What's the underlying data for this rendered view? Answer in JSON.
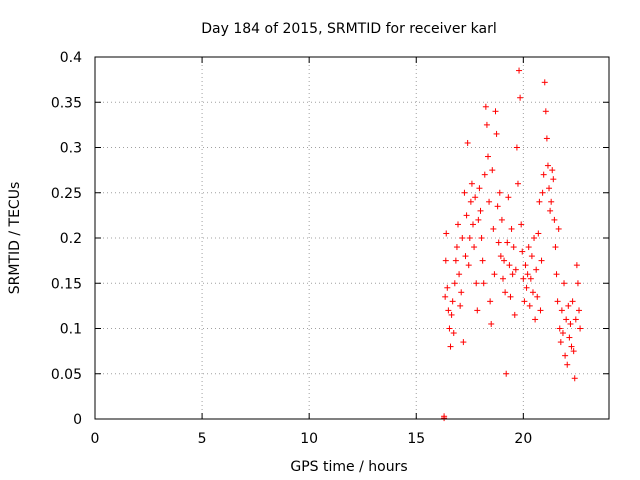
{
  "chart_data": {
    "type": "scatter",
    "title": "Day 184 of 2015, SRMTID for receiver karl",
    "xlabel": "GPS time / hours",
    "ylabel": "SRMTID / TECUs",
    "xlim": [
      0,
      24
    ],
    "ylim": [
      0,
      0.4
    ],
    "xticks": [
      0,
      5,
      10,
      15,
      20
    ],
    "yticks": [
      0,
      0.05,
      0.1,
      0.15,
      0.2,
      0.25,
      0.3,
      0.35,
      0.4
    ],
    "xtick_labels": [
      "0",
      "5",
      "10",
      "15",
      "20"
    ],
    "ytick_labels": [
      "0",
      "0.05",
      "0.1",
      "0.15",
      "0.2",
      "0.25",
      "0.3",
      "0.35",
      "0.4"
    ],
    "grid": true,
    "marker": "+",
    "marker_color": "#ff0000",
    "point_pairs": [
      [
        16.3,
        0.001
      ],
      [
        16.3,
        0.003
      ],
      [
        16.35,
        0.135
      ],
      [
        16.38,
        0.175
      ],
      [
        16.4,
        0.205
      ],
      [
        16.45,
        0.145
      ],
      [
        16.5,
        0.12
      ],
      [
        16.55,
        0.1
      ],
      [
        16.6,
        0.08
      ],
      [
        16.65,
        0.115
      ],
      [
        16.7,
        0.13
      ],
      [
        16.75,
        0.095
      ],
      [
        16.8,
        0.15
      ],
      [
        16.85,
        0.175
      ],
      [
        16.9,
        0.19
      ],
      [
        16.95,
        0.215
      ],
      [
        17.0,
        0.16
      ],
      [
        17.05,
        0.125
      ],
      [
        17.1,
        0.14
      ],
      [
        17.15,
        0.2
      ],
      [
        17.2,
        0.085
      ],
      [
        17.25,
        0.25
      ],
      [
        17.3,
        0.18
      ],
      [
        17.35,
        0.225
      ],
      [
        17.4,
        0.305
      ],
      [
        17.45,
        0.17
      ],
      [
        17.5,
        0.2
      ],
      [
        17.55,
        0.24
      ],
      [
        17.6,
        0.26
      ],
      [
        17.65,
        0.215
      ],
      [
        17.7,
        0.19
      ],
      [
        17.75,
        0.245
      ],
      [
        17.8,
        0.15
      ],
      [
        17.85,
        0.12
      ],
      [
        17.9,
        0.22
      ],
      [
        17.95,
        0.255
      ],
      [
        18.0,
        0.23
      ],
      [
        18.05,
        0.2
      ],
      [
        18.1,
        0.175
      ],
      [
        18.15,
        0.15
      ],
      [
        18.2,
        0.27
      ],
      [
        18.25,
        0.345
      ],
      [
        18.3,
        0.325
      ],
      [
        18.35,
        0.29
      ],
      [
        18.4,
        0.24
      ],
      [
        18.45,
        0.13
      ],
      [
        18.5,
        0.105
      ],
      [
        18.55,
        0.275
      ],
      [
        18.6,
        0.21
      ],
      [
        18.65,
        0.16
      ],
      [
        18.7,
        0.34
      ],
      [
        18.75,
        0.315
      ],
      [
        18.8,
        0.235
      ],
      [
        18.85,
        0.195
      ],
      [
        18.9,
        0.25
      ],
      [
        18.95,
        0.18
      ],
      [
        19.0,
        0.22
      ],
      [
        19.05,
        0.155
      ],
      [
        19.1,
        0.175
      ],
      [
        19.15,
        0.14
      ],
      [
        19.2,
        0.05
      ],
      [
        19.25,
        0.195
      ],
      [
        19.3,
        0.245
      ],
      [
        19.35,
        0.17
      ],
      [
        19.4,
        0.135
      ],
      [
        19.45,
        0.21
      ],
      [
        19.5,
        0.16
      ],
      [
        19.55,
        0.19
      ],
      [
        19.6,
        0.115
      ],
      [
        19.65,
        0.165
      ],
      [
        19.7,
        0.3
      ],
      [
        19.75,
        0.26
      ],
      [
        19.8,
        0.385
      ],
      [
        19.85,
        0.355
      ],
      [
        19.9,
        0.215
      ],
      [
        19.95,
        0.185
      ],
      [
        20.0,
        0.155
      ],
      [
        20.05,
        0.13
      ],
      [
        20.1,
        0.17
      ],
      [
        20.15,
        0.145
      ],
      [
        20.2,
        0.16
      ],
      [
        20.25,
        0.19
      ],
      [
        20.3,
        0.125
      ],
      [
        20.35,
        0.155
      ],
      [
        20.4,
        0.18
      ],
      [
        20.45,
        0.14
      ],
      [
        20.5,
        0.2
      ],
      [
        20.55,
        0.11
      ],
      [
        20.6,
        0.165
      ],
      [
        20.65,
        0.135
      ],
      [
        20.7,
        0.205
      ],
      [
        20.75,
        0.24
      ],
      [
        20.8,
        0.12
      ],
      [
        20.85,
        0.175
      ],
      [
        20.9,
        0.25
      ],
      [
        20.95,
        0.27
      ],
      [
        21.0,
        0.372
      ],
      [
        21.05,
        0.34
      ],
      [
        21.1,
        0.31
      ],
      [
        21.15,
        0.28
      ],
      [
        21.2,
        0.255
      ],
      [
        21.25,
        0.23
      ],
      [
        21.3,
        0.24
      ],
      [
        21.35,
        0.275
      ],
      [
        21.4,
        0.265
      ],
      [
        21.45,
        0.22
      ],
      [
        21.5,
        0.19
      ],
      [
        21.55,
        0.16
      ],
      [
        21.6,
        0.13
      ],
      [
        21.65,
        0.21
      ],
      [
        21.7,
        0.1
      ],
      [
        21.75,
        0.085
      ],
      [
        21.8,
        0.12
      ],
      [
        21.85,
        0.095
      ],
      [
        21.9,
        0.15
      ],
      [
        21.95,
        0.07
      ],
      [
        22.0,
        0.11
      ],
      [
        22.05,
        0.06
      ],
      [
        22.1,
        0.125
      ],
      [
        22.15,
        0.09
      ],
      [
        22.2,
        0.105
      ],
      [
        22.25,
        0.08
      ],
      [
        22.3,
        0.13
      ],
      [
        22.35,
        0.075
      ],
      [
        22.4,
        0.045
      ],
      [
        22.45,
        0.11
      ],
      [
        22.5,
        0.17
      ],
      [
        22.55,
        0.15
      ],
      [
        22.6,
        0.12
      ],
      [
        22.65,
        0.1
      ]
    ]
  }
}
